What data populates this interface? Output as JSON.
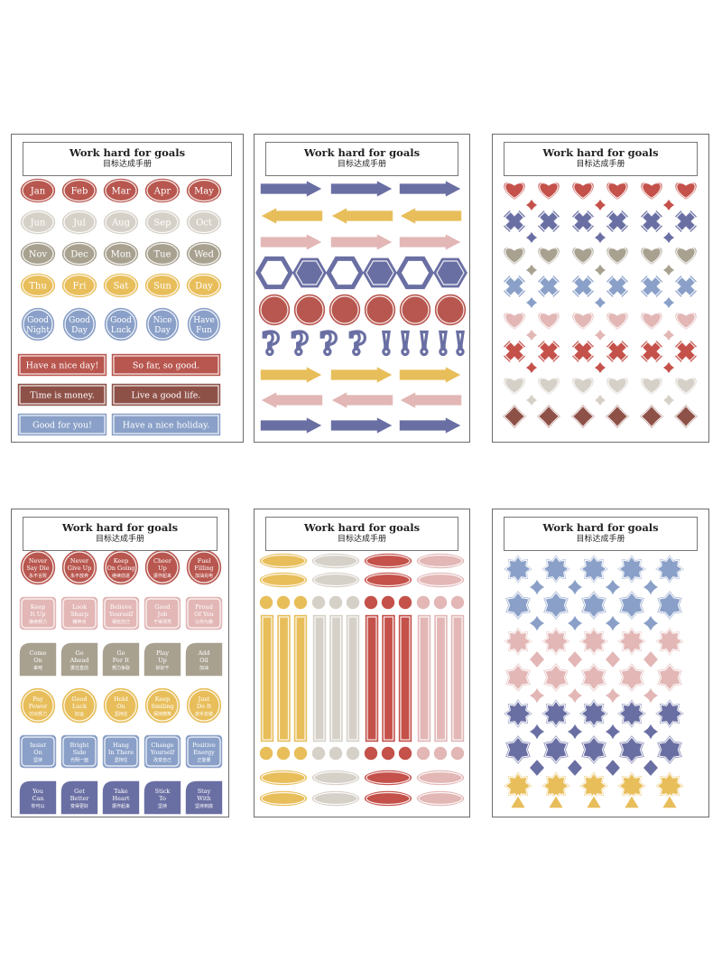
{
  "sheets": [
    {
      "title": "Work hard for goals",
      "subtitle": "目标达成手册",
      "content": {
        "month_rows": [
          {
            "color": "#b8574f",
            "labels": [
              "Jan",
              "Feb",
              "Mar",
              "Apr",
              "May"
            ]
          },
          {
            "color": "#d6d1c8",
            "labels": [
              "Jun",
              "Jul",
              "Aug",
              "Sep",
              "Oct"
            ]
          },
          {
            "color": "#a8a190",
            "labels": [
              "Nov",
              "Dec",
              "Mon",
              "Tue",
              "Wed"
            ]
          },
          {
            "color": "#e8be5b",
            "labels": [
              "Thu",
              "Fri",
              "Sat",
              "Sun",
              "Day"
            ]
          }
        ],
        "circle_row": {
          "color": "#8aa0c8",
          "labels": [
            [
              "Good",
              "Night"
            ],
            [
              "Good",
              "Day"
            ],
            [
              "Good",
              "Luck"
            ],
            [
              "Nice",
              "Day"
            ],
            [
              "Have",
              "Fun"
            ]
          ]
        },
        "banners": [
          {
            "color": "#b8574f",
            "label": "Have a nice day!"
          },
          {
            "color": "#b8574f",
            "label": "So far, so good."
          },
          {
            "color": "#8e5148",
            "label": "Time is money."
          },
          {
            "color": "#8e5148",
            "label": "Live a good life."
          },
          {
            "color": "#8aa0c8",
            "label": "Good for you!"
          },
          {
            "color": "#8aa0c8",
            "label": "Have a nice holiday."
          }
        ]
      }
    },
    {
      "title": "Work hard for goals",
      "subtitle": "目标达成手册",
      "content": {
        "arrow_rows": [
          {
            "color": "#6a6fa3",
            "direction": "right"
          },
          {
            "color": "#e8be5b",
            "direction": "left"
          },
          {
            "color": "#e2b7b6",
            "direction": "right"
          }
        ],
        "hexagon_color": "#6a6fa3",
        "circle_color": "#b8574f",
        "glyph_color": "#6a6fa3",
        "glyphs": [
          "?",
          "?",
          "?",
          "?",
          "!",
          "!",
          "!",
          "!",
          "!"
        ],
        "arrow_rows_bottom": [
          {
            "color": "#e8be5b",
            "direction": "right"
          },
          {
            "color": "#e2b7b6",
            "direction": "left"
          },
          {
            "color": "#6a6fa3",
            "direction": "right"
          }
        ]
      }
    },
    {
      "title": "Work hard for goals",
      "subtitle": "目标达成手册",
      "content": {
        "row_colors": [
          "#c4514a",
          "#6a6fa3",
          "#a8a190",
          "#8aa0c8",
          "#e2b7b6",
          "#c4514a",
          "#d6d1c8",
          "#8e5148"
        ],
        "icons": [
          "heart-icon",
          "cross-icon",
          "sparkle-icon"
        ]
      }
    },
    {
      "title": "Work hard for goals",
      "subtitle": "目标达成手册",
      "content": {
        "rows": [
          {
            "shape": "circle",
            "color": "#b8574f",
            "items": [
              [
                "Never",
                "Say Die",
                "永不言败"
              ],
              [
                "Never",
                "Give Up",
                "永不放弃"
              ],
              [
                "Keep",
                "On Going",
                "继续前进"
              ],
              [
                "Cheer",
                "Up",
                "振作起来"
              ],
              [
                "Fuel",
                "Filling",
                "加油充电"
              ]
            ]
          },
          {
            "shape": "square",
            "color": "#e2b7b6",
            "items": [
              [
                "Keep",
                "It Up",
                "继续努力"
              ],
              [
                "Look",
                "Sharp",
                "精神点"
              ],
              [
                "Believe",
                "Yourself",
                "相信自己"
              ],
              [
                "Good",
                "Job",
                "干得漂亮"
              ],
              [
                "Proud",
                "Of You",
                "以你为傲"
              ]
            ]
          },
          {
            "shape": "tab",
            "color": "#a8a190",
            "items": [
              [
                "Come",
                "On",
                "来吧"
              ],
              [
                "Go",
                "Ahead",
                "勇往直前"
              ],
              [
                "Go",
                "For It",
                "努力争取"
              ],
              [
                "Play",
                "Up",
                "好好干"
              ],
              [
                "Add",
                "Oil",
                "加油"
              ]
            ]
          },
          {
            "shape": "circle",
            "color": "#e8be5b",
            "items": [
              [
                "Pay",
                "Power",
                "付出努力"
              ],
              [
                "Good",
                "Luck",
                "好运"
              ],
              [
                "Hold",
                "On",
                "坚持住"
              ],
              [
                "Keep",
                "Smiling",
                "保持微笑"
              ],
              [
                "Just",
                "Do It",
                "放手去做"
              ]
            ]
          },
          {
            "shape": "square",
            "color": "#8aa0c8",
            "items": [
              [
                "Insist",
                "On",
                "坚持"
              ],
              [
                "Bright",
                "Side",
                "光明一面"
              ],
              [
                "Hang",
                "In There",
                "坚持住"
              ],
              [
                "Change",
                "Yourself",
                "改变自己"
              ],
              [
                "Positive",
                "Energy",
                "正能量"
              ]
            ]
          },
          {
            "shape": "tab",
            "color": "#6a6fa3",
            "items": [
              [
                "You",
                "Can",
                "你可以"
              ],
              [
                "Get",
                "Better",
                "变得更好"
              ],
              [
                "Take",
                "Heart",
                "振作起来"
              ],
              [
                "Stick",
                "To",
                "坚持"
              ],
              [
                "Stay",
                "With",
                "坚持到底"
              ]
            ]
          }
        ]
      }
    },
    {
      "title": "Work hard for goals",
      "subtitle": "目标达成手册",
      "content": {
        "column_colors": [
          "#e8be5b",
          "#d6d1c8",
          "#c4514a",
          "#e2b7b6"
        ]
      }
    },
    {
      "title": "Work hard for goals",
      "subtitle": "目标达成手册",
      "content": {
        "row_colors": [
          "#8aa0c8",
          "#8aa0c8",
          "#e2b7b6",
          "#e2b7b6",
          "#6a6fa3",
          "#6a6fa3",
          "#e8be5b"
        ],
        "icons": [
          "flower-icon",
          "sparkle-icon",
          "diamond-icon",
          "triangle-icon"
        ]
      }
    }
  ]
}
